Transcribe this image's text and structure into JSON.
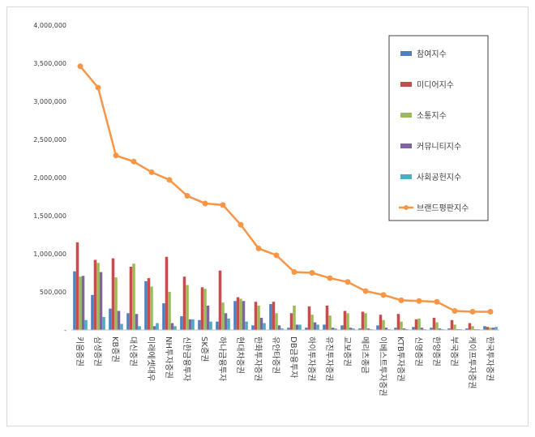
{
  "chart_data": {
    "type": "bar_line",
    "categories": [
      "키움증권",
      "삼성증권",
      "KB증권",
      "대신증권",
      "미래에셋대우",
      "NH투자증권",
      "신한금융투자",
      "SK증권",
      "하나금융투자",
      "현대차증권",
      "한화투자증권",
      "유안타증권",
      "DB금융투자",
      "하이투자증권",
      "유진투자증권",
      "교보증권",
      "메리츠종금",
      "이베스트투자증권",
      "KTB투자증권",
      "신영증권",
      "한양증권",
      "부국증권",
      "케이프투자증권",
      "한국투자증권"
    ],
    "series": [
      {
        "name": "참여지수",
        "color": "#4f81bd",
        "values": [
          770000,
          460000,
          280000,
          220000,
          640000,
          350000,
          180000,
          130000,
          110000,
          380000,
          60000,
          340000,
          30000,
          30000,
          70000,
          60000,
          20000,
          60000,
          30000,
          40000,
          30000,
          20000,
          20000,
          50000
        ]
      },
      {
        "name": "미디어지수",
        "color": "#c0504d",
        "values": [
          1150000,
          920000,
          940000,
          830000,
          680000,
          960000,
          700000,
          560000,
          780000,
          430000,
          370000,
          370000,
          220000,
          310000,
          320000,
          250000,
          240000,
          200000,
          210000,
          140000,
          160000,
          130000,
          90000,
          40000
        ]
      },
      {
        "name": "소통지수",
        "color": "#9bbb59",
        "values": [
          700000,
          880000,
          690000,
          870000,
          570000,
          500000,
          590000,
          540000,
          360000,
          410000,
          320000,
          220000,
          320000,
          200000,
          190000,
          220000,
          220000,
          130000,
          110000,
          150000,
          100000,
          70000,
          50000,
          30000
        ]
      },
      {
        "name": "커뮤니티지수",
        "color": "#8064a2",
        "values": [
          710000,
          760000,
          250000,
          210000,
          50000,
          90000,
          140000,
          320000,
          220000,
          380000,
          160000,
          60000,
          70000,
          100000,
          30000,
          30000,
          20000,
          30000,
          20000,
          30000,
          20000,
          10000,
          10000,
          30000
        ]
      },
      {
        "name": "사회공헌지수",
        "color": "#4bacc6",
        "values": [
          130000,
          170000,
          80000,
          50000,
          90000,
          50000,
          140000,
          110000,
          150000,
          110000,
          90000,
          20000,
          70000,
          70000,
          20000,
          20000,
          10000,
          10000,
          10000,
          10000,
          10000,
          10000,
          10000,
          40000
        ]
      },
      {
        "name": "브랜드평판지수",
        "color": "#f79646",
        "line": true,
        "values": [
          3460000,
          3180000,
          2290000,
          2210000,
          2070000,
          1970000,
          1760000,
          1660000,
          1640000,
          1380000,
          1070000,
          980000,
          760000,
          750000,
          680000,
          630000,
          510000,
          460000,
          390000,
          380000,
          370000,
          250000,
          240000,
          240000
        ]
      }
    ],
    "ylim": [
      0,
      4000000
    ],
    "yticks": [
      {
        "value": 0,
        "label": "-"
      },
      {
        "value": 500000,
        "label": "500,000"
      },
      {
        "value": 1000000,
        "label": "1,000,000"
      },
      {
        "value": 1500000,
        "label": "1,500,000"
      },
      {
        "value": 2000000,
        "label": "2,000,000"
      },
      {
        "value": 2500000,
        "label": "2,500,000"
      },
      {
        "value": 3000000,
        "label": "3,000,000"
      },
      {
        "value": 3500000,
        "label": "3,500,000"
      },
      {
        "value": 4000000,
        "label": "4,000,000"
      }
    ],
    "grid": false,
    "legend": "upper right"
  }
}
